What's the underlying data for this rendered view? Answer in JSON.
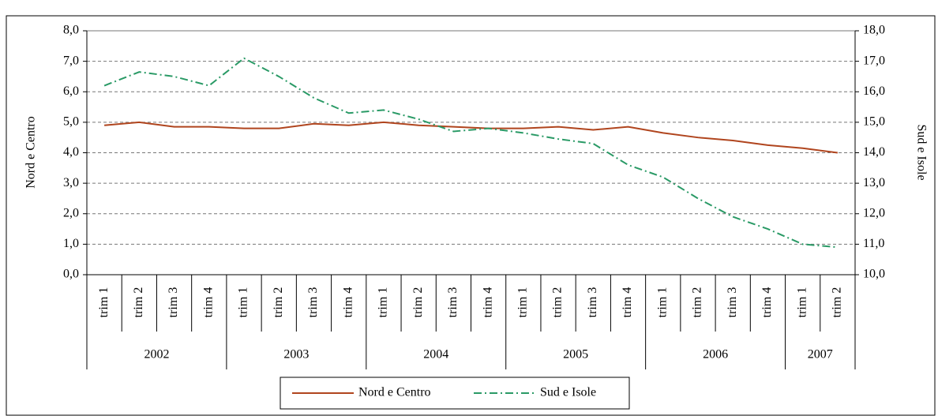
{
  "chart_data": {
    "type": "line",
    "groups": [
      {
        "name": "2002",
        "categories": [
          "trim 1",
          "trim 2",
          "trim 3",
          "trim 4"
        ]
      },
      {
        "name": "2003",
        "categories": [
          "trim 1",
          "trim 2",
          "trim 3",
          "trim 4"
        ]
      },
      {
        "name": "2004",
        "categories": [
          "trim 1",
          "trim 2",
          "trim 3",
          "trim 4"
        ]
      },
      {
        "name": "2005",
        "categories": [
          "trim 1",
          "trim 2",
          "trim 3",
          "trim 4"
        ]
      },
      {
        "name": "2006",
        "categories": [
          "trim 1",
          "trim 2",
          "trim 3",
          "trim 4"
        ]
      },
      {
        "name": "2007",
        "categories": [
          "trim 1",
          "trim 2"
        ]
      }
    ],
    "series": [
      {
        "name": "Nord e Centro",
        "color": "#b0451e",
        "dash": "solid",
        "values": [
          4.9,
          5.0,
          4.85,
          4.85,
          4.8,
          4.8,
          4.95,
          4.9,
          5.0,
          4.9,
          4.85,
          4.8,
          4.8,
          4.85,
          4.75,
          4.85,
          4.65,
          4.5,
          4.4,
          4.25,
          4.15,
          4.0
        ]
      },
      {
        "name": "Sud e Isole",
        "color": "#2a9a66",
        "dash": "dash-dot",
        "axis": "y2",
        "values": [
          16.2,
          16.65,
          16.5,
          16.2,
          17.1,
          16.5,
          15.8,
          15.3,
          15.4,
          15.1,
          14.7,
          14.8,
          14.65,
          14.45,
          14.3,
          13.6,
          13.2,
          12.5,
          11.9,
          11.5,
          11.0,
          10.9
        ]
      }
    ],
    "ylabel": "Nord e Centro",
    "y2label": "Sud e Isole",
    "ylim": [
      0,
      8
    ],
    "yticks": [
      {
        "value": 0,
        "label": "0,0"
      },
      {
        "value": 1,
        "label": "1,0"
      },
      {
        "value": 2,
        "label": "2,0"
      },
      {
        "value": 3,
        "label": "3,0"
      },
      {
        "value": 4,
        "label": "4,0"
      },
      {
        "value": 5,
        "label": "5,0"
      },
      {
        "value": 6,
        "label": "6,0"
      },
      {
        "value": 7,
        "label": "7,0"
      },
      {
        "value": 8,
        "label": "8,0"
      }
    ],
    "y2lim": [
      10,
      18
    ],
    "y2ticks": [
      {
        "value": 10,
        "label": "10,0"
      },
      {
        "value": 11,
        "label": "11,0"
      },
      {
        "value": 12,
        "label": "12,0"
      },
      {
        "value": 13,
        "label": "13,0"
      },
      {
        "value": 14,
        "label": "14,0"
      },
      {
        "value": 15,
        "label": "15,0"
      },
      {
        "value": 16,
        "label": "16,0"
      },
      {
        "value": 17,
        "label": "17,0"
      },
      {
        "value": 18,
        "label": "18,0"
      }
    ],
    "grid": true,
    "legend": "bottom"
  }
}
